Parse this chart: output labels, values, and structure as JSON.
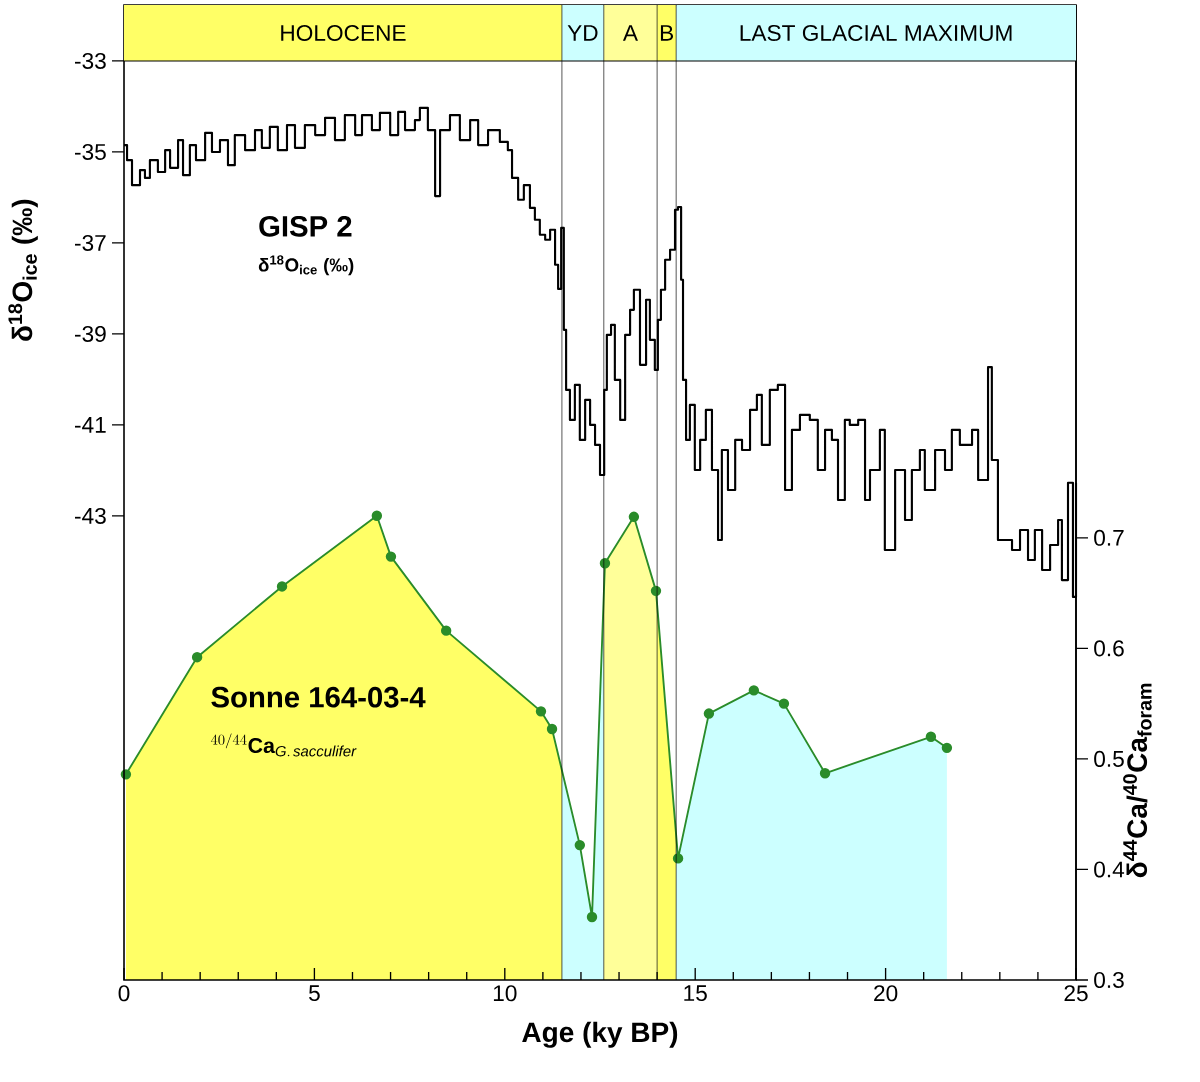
{
  "chart_data": {
    "type": "step",
    "xlabel": "Age (ky BP)",
    "ylabel": "δ$^{18}$O$_{ice}$ (‰)",
    "y2label": "δ$^{44}$Ca/$^{40}$Ca$_{foram}$",
    "xlim": [
      0,
      25
    ],
    "xticks": [
      0,
      5,
      10,
      15,
      20,
      25
    ],
    "ylim": [
      -53.2,
      -31.77
    ],
    "yticks": [
      -43,
      -41,
      -39,
      -37,
      -35,
      -33
    ],
    "y2lim": [
      0.3,
      1.182
    ],
    "y2ticks": [
      0.3,
      0.4,
      0.5,
      0.6,
      0.7
    ],
    "bands": [
      {
        "axis": "x",
        "from": 0,
        "to": 11.5,
        "label": "HOLOCENE",
        "color": "#ffff66"
      },
      {
        "axis": "x",
        "from": 11.5,
        "to": 12.6,
        "label": "YD",
        "color": "#ccffff"
      },
      {
        "axis": "x",
        "from": 12.6,
        "to": 14.0,
        "label": "A",
        "color": "#ffff99"
      },
      {
        "axis": "x",
        "from": 14.0,
        "to": 14.5,
        "label": "B",
        "color": "#ffff66"
      },
      {
        "axis": "x",
        "from": 14.5,
        "to": 25,
        "label": "LAST GLACIAL MAXIMUM",
        "color": "#ccffff"
      }
    ],
    "annotations": [
      "GISP 2",
      "δ$^{18}$O$_{ice}$ (‰)",
      "Sonne 164-03-4",
      "^{40/44}\\mathbf{Ca}_{\\mathit{G.\\,sacculifer}}"
    ],
    "series": [
      {
        "color": "#000000",
        "x": [
          0,
          0.08,
          0.21,
          0.42,
          0.55,
          0.68,
          0.89,
          1.08,
          1.21,
          1.42,
          1.55,
          1.73,
          1.89,
          2.13,
          2.31,
          2.52,
          2.73,
          2.91,
          3.18,
          3.44,
          3.62,
          3.83,
          4.04,
          4.28,
          4.49,
          4.75,
          5.02,
          5.28,
          5.54,
          5.8,
          6.07,
          6.25,
          6.51,
          6.72,
          6.99,
          7.2,
          7.38,
          7.64,
          7.77,
          7.98,
          8.17,
          8.3,
          8.56,
          8.82,
          9.09,
          9.3,
          9.56,
          9.87,
          10.08,
          10.19,
          10.35,
          10.5,
          10.66,
          10.79,
          10.92,
          11.06,
          11.19,
          11.32,
          11.4,
          11.48,
          11.55,
          11.61,
          11.71,
          11.84,
          11.97,
          12.11,
          12.24,
          12.37,
          12.5,
          12.61,
          12.68,
          12.79,
          12.89,
          13.03,
          13.16,
          13.29,
          13.39,
          13.55,
          13.71,
          13.81,
          13.94,
          14.02,
          14.1,
          14.21,
          14.34,
          14.47,
          14.55,
          14.63,
          14.68,
          14.76,
          14.86,
          14.99,
          15.13,
          15.28,
          15.44,
          15.6,
          15.7,
          15.86,
          16.05,
          16.23,
          16.44,
          16.62,
          16.75,
          16.96,
          17.17,
          17.36,
          17.54,
          17.75,
          18.01,
          18.22,
          18.41,
          18.59,
          18.75,
          18.93,
          19.06,
          19.28,
          19.46,
          19.59,
          19.85,
          19.98,
          20.25,
          20.51,
          20.69,
          20.9,
          21.03,
          21.3,
          21.56,
          21.74,
          21.95,
          22.27,
          22.43,
          22.69,
          22.79,
          22.95,
          23.14,
          23.32,
          23.53,
          23.74,
          23.92,
          24.11,
          24.32,
          24.53,
          24.63,
          24.79,
          24.92,
          25
        ],
        "values": [
          -34.85,
          -35.18,
          -35.73,
          -35.4,
          -35.57,
          -35.18,
          -35.44,
          -34.96,
          -35.35,
          -34.74,
          -35.51,
          -34.85,
          -35.18,
          -34.58,
          -35.0,
          -34.74,
          -35.29,
          -34.63,
          -34.96,
          -34.52,
          -34.91,
          -34.45,
          -34.96,
          -34.41,
          -34.91,
          -34.41,
          -34.63,
          -34.25,
          -34.74,
          -34.19,
          -34.63,
          -34.19,
          -34.52,
          -34.14,
          -34.63,
          -34.12,
          -34.52,
          -34.3,
          -34.03,
          -34.52,
          -35.97,
          -34.52,
          -34.19,
          -34.74,
          -34.3,
          -34.85,
          -34.52,
          -34.78,
          -34.96,
          -35.57,
          -36.05,
          -35.73,
          -36.23,
          -36.49,
          -36.82,
          -36.93,
          -36.71,
          -37.48,
          -38.01,
          -36.67,
          -38.91,
          -40.23,
          -40.89,
          -40.12,
          -41.33,
          -40.45,
          -41.0,
          -41.44,
          -42.1,
          -40.23,
          -39.02,
          -38.8,
          -40.01,
          -40.89,
          -39.02,
          -38.47,
          -38.03,
          -39.68,
          -38.25,
          -39.13,
          -39.79,
          -38.69,
          -38.03,
          -37.37,
          -37.15,
          -36.27,
          -36.21,
          -37.81,
          -40.01,
          -41.33,
          -40.56,
          -41.99,
          -41.33,
          -40.67,
          -41.99,
          -43.53,
          -41.55,
          -42.43,
          -41.33,
          -41.55,
          -40.67,
          -40.34,
          -41.44,
          -40.23,
          -40.12,
          -42.43,
          -41.11,
          -40.78,
          -40.89,
          -41.99,
          -41.11,
          -41.33,
          -42.65,
          -40.89,
          -41.0,
          -40.89,
          -42.65,
          -41.99,
          -41.11,
          -43.75,
          -41.99,
          -43.09,
          -41.99,
          -41.55,
          -42.43,
          -41.55,
          -41.99,
          -41.11,
          -41.44,
          -41.11,
          -42.21,
          -39.73,
          -41.77,
          -43.53,
          -43.53,
          -43.75,
          -43.31,
          -43.97,
          -43.31,
          -44.19,
          -43.64,
          -43.09,
          -44.41,
          -42.27,
          -44.78,
          -42.27
        ]
      },
      {
        "type": "area",
        "axis": "y2",
        "color": "#2a8c2a",
        "marker": "circle",
        "x": [
          0.05,
          1.92,
          4.15,
          6.64,
          7.01,
          8.46,
          10.95,
          11.24,
          11.97,
          12.29,
          12.63,
          13.39,
          13.97,
          14.55,
          15.36,
          16.54,
          17.33,
          18.41,
          21.19,
          21.61
        ],
        "values": [
          0.486,
          0.592,
          0.656,
          0.72,
          0.683,
          0.616,
          0.543,
          0.527,
          0.422,
          0.357,
          0.677,
          0.719,
          0.652,
          0.41,
          0.541,
          0.562,
          0.55,
          0.487,
          0.52,
          0.51
        ]
      }
    ]
  }
}
